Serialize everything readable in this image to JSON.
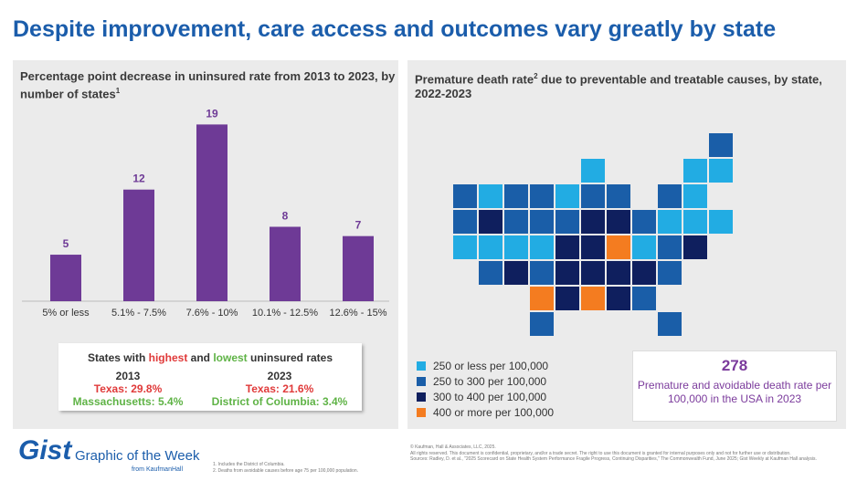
{
  "title": "Despite improvement, care access and outcomes vary greatly by state",
  "left": {
    "title": "Percentage point decrease in uninsured rate from 2013 to 2023, by number of states",
    "sup": "1",
    "chart_data": {
      "type": "bar",
      "categories": [
        "5% or less",
        "5.1% - 7.5%",
        "7.6% - 10%",
        "10.1% - 12.5%",
        "12.6% - 15%"
      ],
      "values": [
        5,
        12,
        19,
        8,
        7
      ],
      "ylim": [
        0,
        21
      ],
      "color": "#6e3a96",
      "grid": false
    },
    "box": {
      "pre": "States with ",
      "highest": "highest",
      "and": " and ",
      "lowest": "lowest",
      "post": " uninsured rates",
      "y1": "2013",
      "y1_high": "Texas: 29.8%",
      "y1_low": "Massachusetts: 5.4%",
      "y2": "2023",
      "y2_high": "Texas: 21.6%",
      "y2_low": "District of Columbia: 3.4%"
    }
  },
  "right": {
    "title_a": "Premature death rate",
    "sup": "2",
    "title_b": " due to preventable and treatable causes, by state, 2022-2023",
    "colors": [
      "#22ace3",
      "#1a5ea8",
      "#0f1f5e",
      "#f47c20"
    ],
    "legend": [
      "250 or less per 100,000",
      "250 to 300 per 100,000",
      "300 to 400 per 100,000",
      "400 or more per 100,000"
    ],
    "states": {
      "ME": 1,
      "VT": 0,
      "NH": 0,
      "WA": 1,
      "ID": 0,
      "MT": 1,
      "ND": 1,
      "MN": 0,
      "WI": 0,
      "MI": 1,
      "NY": 1,
      "MA": 0,
      "OR": 1,
      "NV": 2,
      "WY": 1,
      "SD": 1,
      "IA": 1,
      "IL": 1,
      "IN": 2,
      "OH": 2,
      "PA": 1,
      "NJ": 0,
      "CT": 0,
      "RI": 0,
      "CA": 0,
      "UT": 0,
      "CO": 0,
      "NE": 0,
      "MO": 2,
      "KY": 2,
      "WV": 3,
      "VA": 0,
      "MD": 1,
      "DE": 2,
      "AZ": 1,
      "NM": 2,
      "KS": 1,
      "AR": 2,
      "TN": 2,
      "NC": 2,
      "SC": 2,
      "DC": 1,
      "OK": 3,
      "LA": 2,
      "MS": 3,
      "AL": 2,
      "GA": 1,
      "TX": 1,
      "FL": 1
    },
    "stat": {
      "value": "278",
      "desc": "Premature and avoidable death rate per 100,000 in the USA in 2023"
    }
  },
  "footer": {
    "logo": "Gist",
    "tagline": "Graphic of the Week",
    "from": "from KaufmanHall",
    "notes": [
      "1.   Includes the District of Columbia.",
      "2.   Deaths from avoidable causes before age 75 per 100,000 population."
    ],
    "copyright": "© Kaufman, Hall & Associates, LLC, 2025.",
    "rights": "All rights reserved. This document is confidential, proprietary, and/or a trade secret. The right to use this document is granted for internal purposes only and not for further use or distribution.",
    "sources": "Sources: Radley, D. et al., \"2025 Scorecard on State Health System Performance Fragile Progress, Continuing Disparities,\" The Commonwealth Fund, June 2025; Gist Weekly at Kaufman Hall analysis."
  }
}
